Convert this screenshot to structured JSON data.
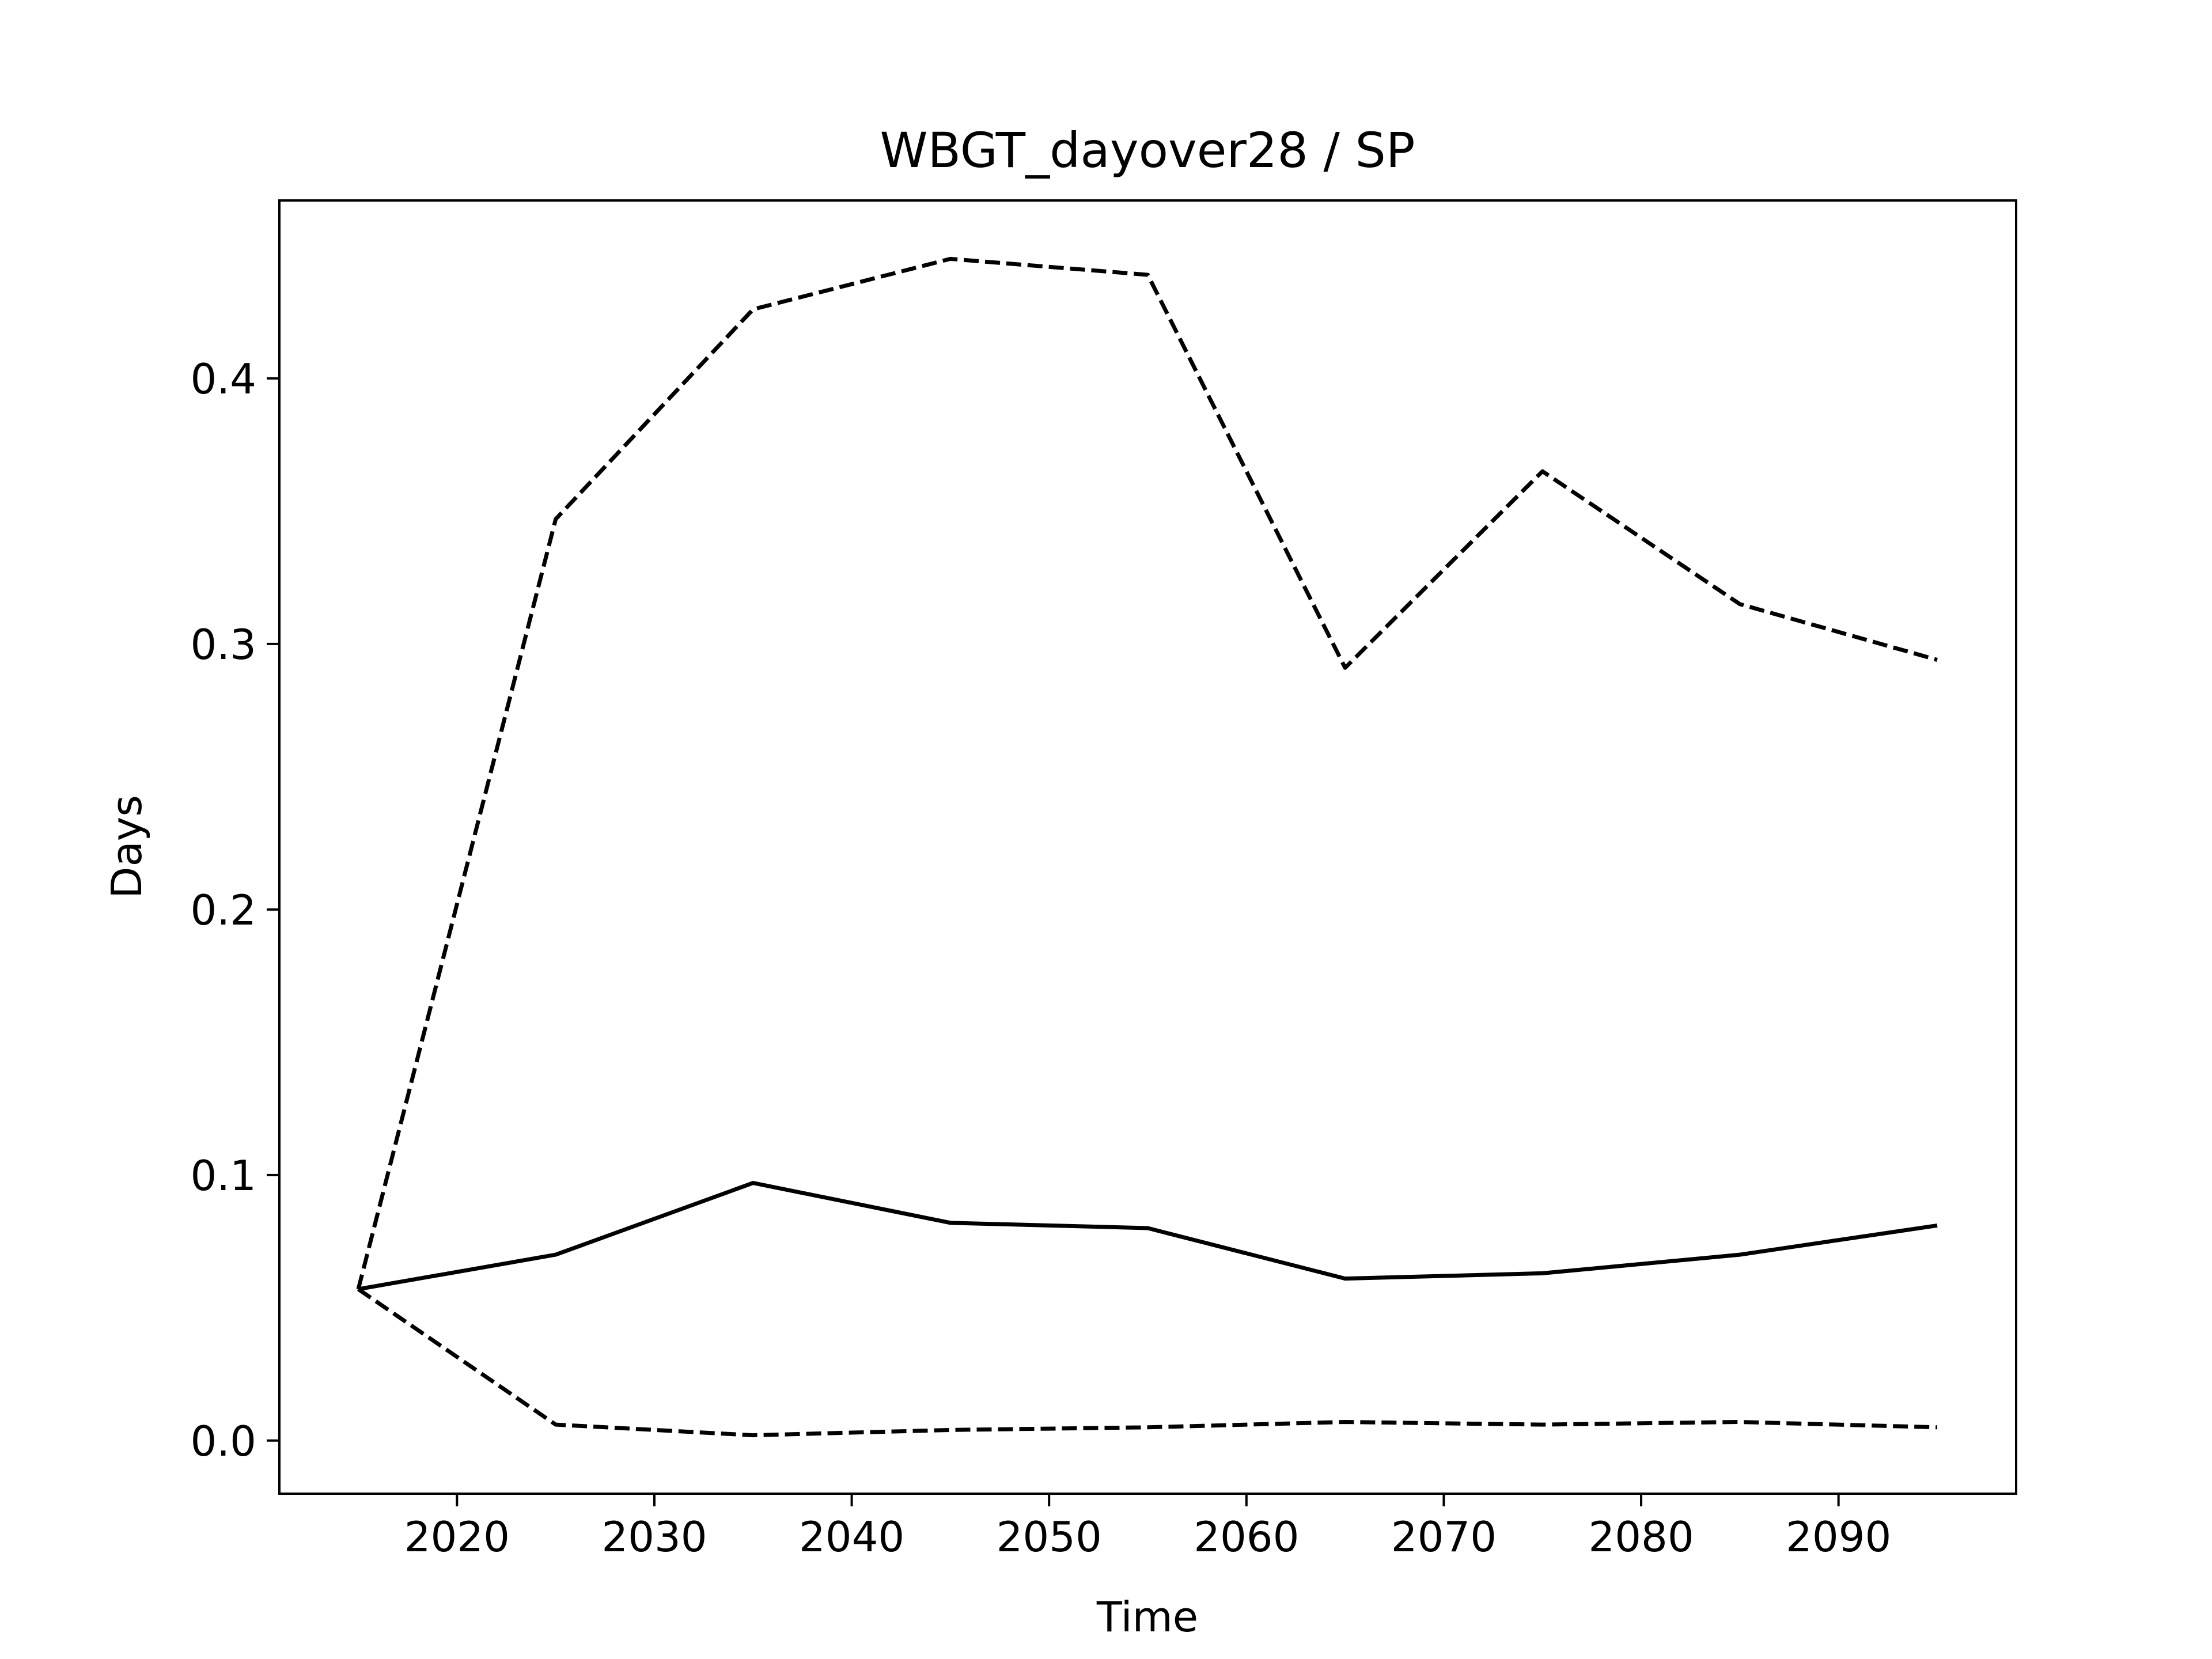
{
  "chart_data": {
    "type": "line",
    "title": "WBGT_dayover28 / SP",
    "xlabel": "Time",
    "ylabel": "Days",
    "xlim": [
      2011,
      2099
    ],
    "ylim": [
      -0.02,
      0.467
    ],
    "xticks": [
      2020,
      2030,
      2040,
      2050,
      2060,
      2070,
      2080,
      2090
    ],
    "yticks": [
      0.0,
      0.1,
      0.2,
      0.3,
      0.4
    ],
    "ytick_labels": [
      "0.0",
      "0.1",
      "0.2",
      "0.3",
      "0.4"
    ],
    "grid": false,
    "legend": "none",
    "line_color": "#000000",
    "x": [
      2015,
      2025,
      2035,
      2045,
      2055,
      2065,
      2075,
      2085,
      2095
    ],
    "series": [
      {
        "style": "solid",
        "values": [
          0.057,
          0.07,
          0.097,
          0.082,
          0.08,
          0.061,
          0.063,
          0.07,
          0.081
        ]
      },
      {
        "style": "dashed",
        "values": [
          0.057,
          0.347,
          0.426,
          0.445,
          0.439,
          0.291,
          0.365,
          0.315,
          0.294
        ]
      },
      {
        "style": "dashed",
        "values": [
          0.057,
          0.006,
          0.002,
          0.004,
          0.005,
          0.007,
          0.006,
          0.007,
          0.005
        ]
      }
    ]
  }
}
